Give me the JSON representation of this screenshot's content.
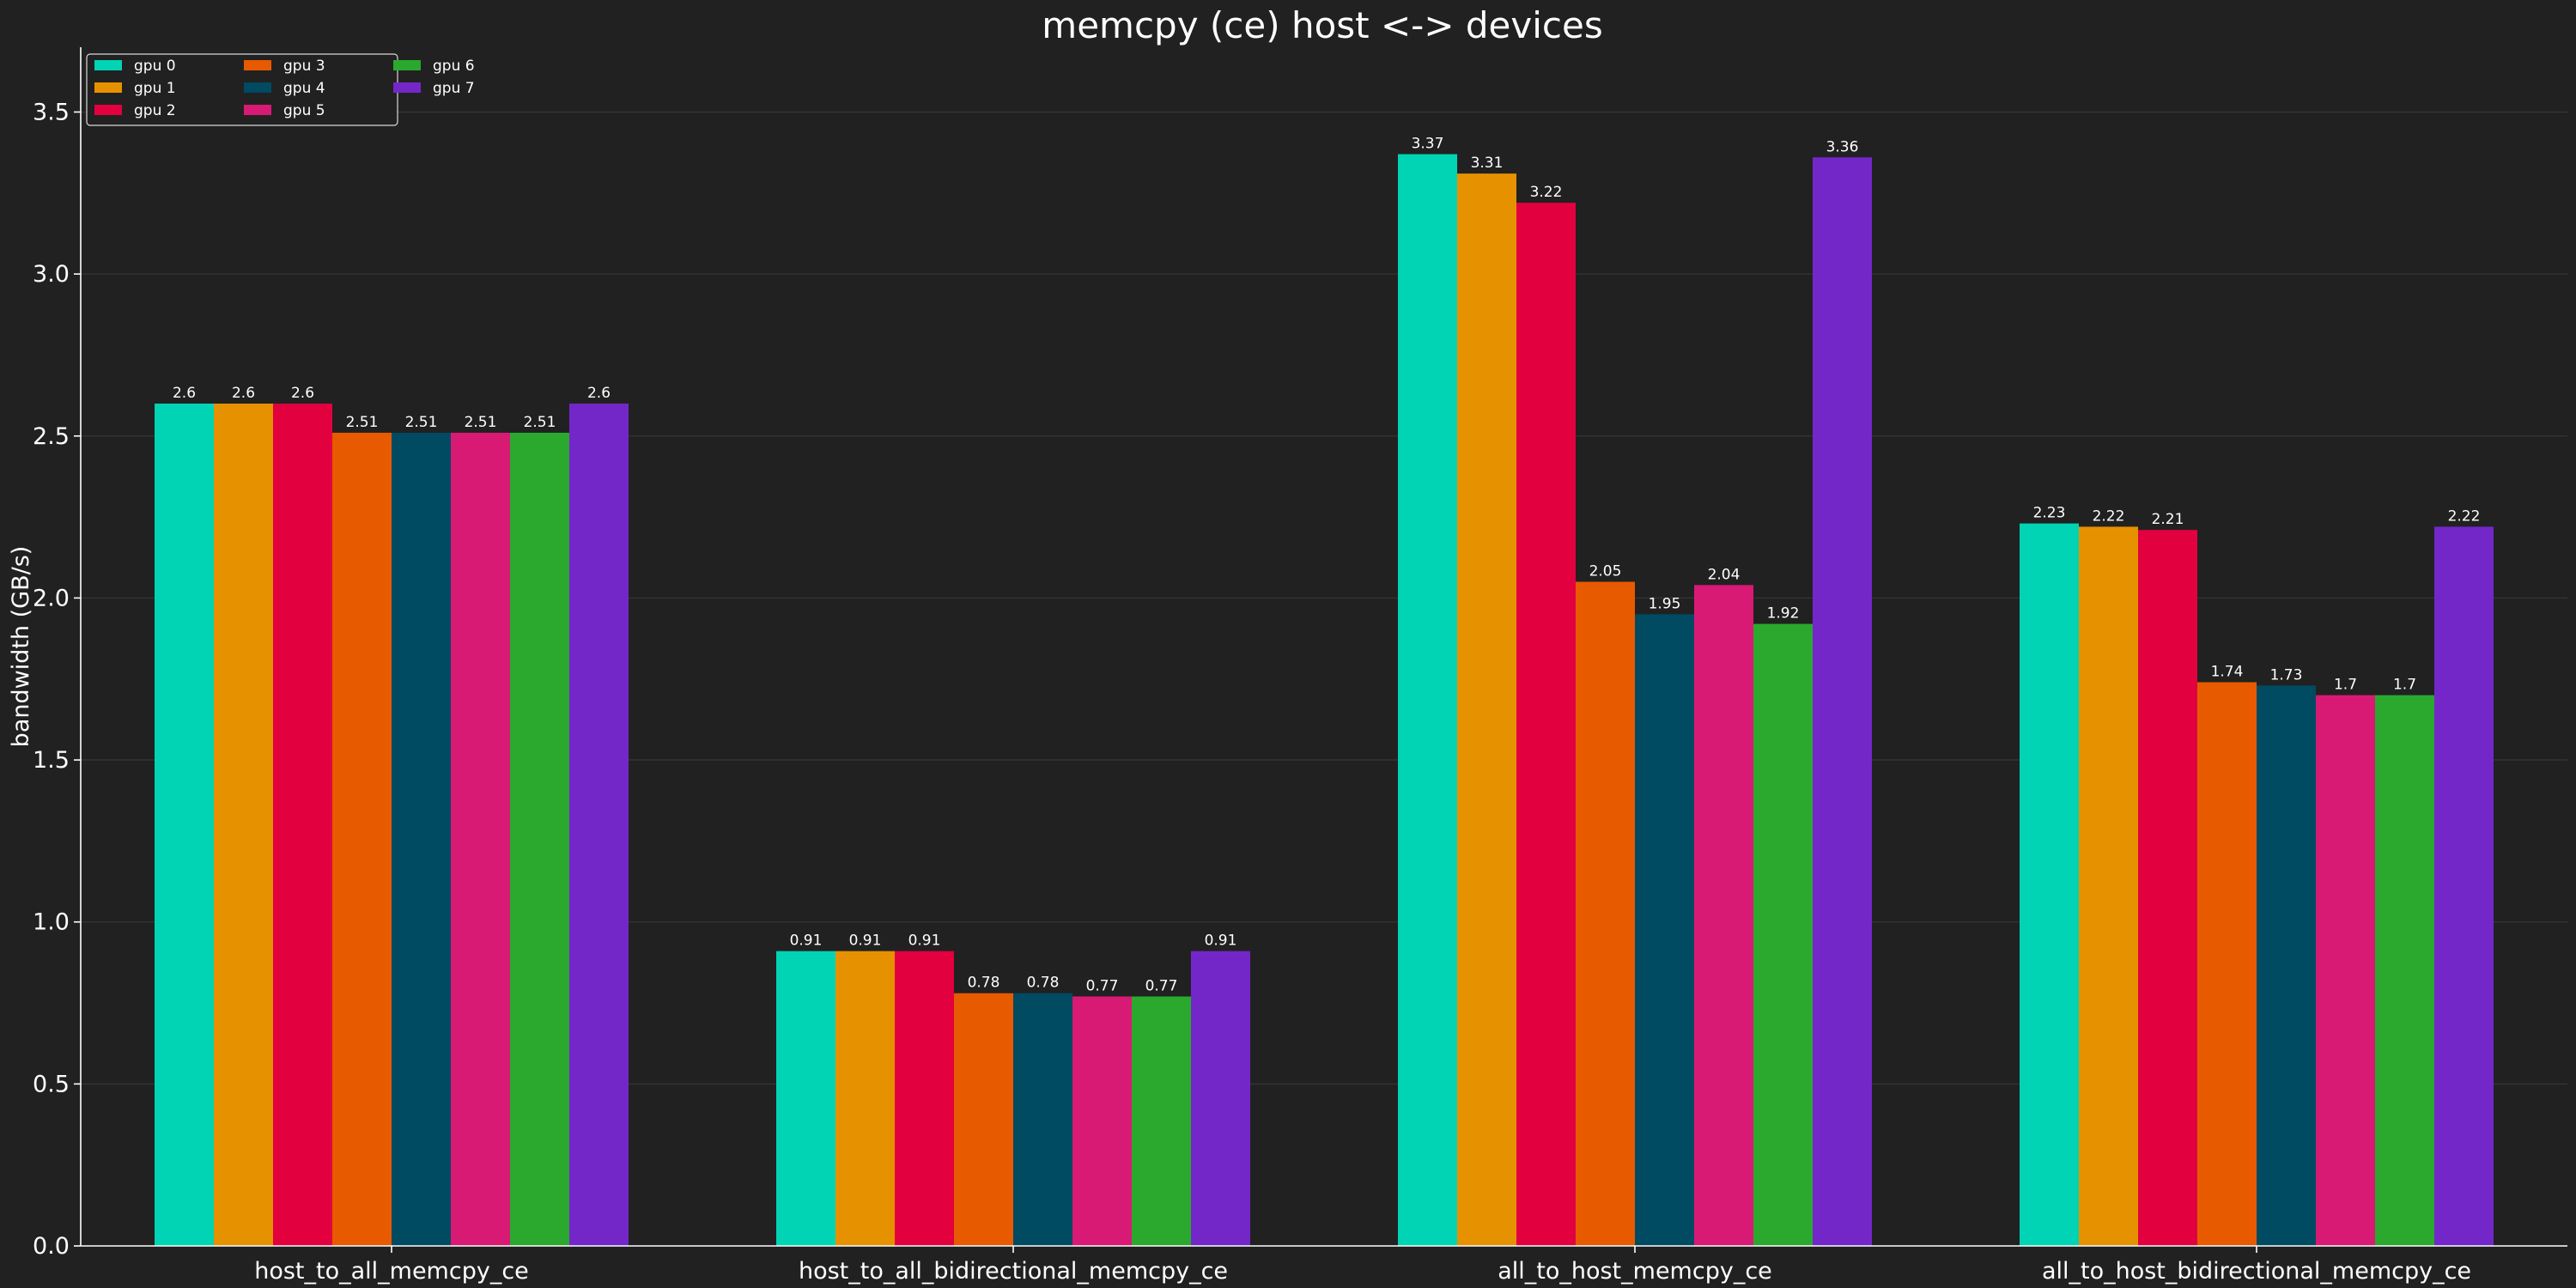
{
  "chart_data": {
    "type": "bar",
    "title": "memcpy (ce) host <-> devices",
    "xlabel": "",
    "ylabel": "bandwidth (GB/s)",
    "ylim": [
      0,
      3.7
    ],
    "yticks": [
      "0.0",
      "0.5",
      "1.0",
      "1.5",
      "2.0",
      "2.5",
      "3.0",
      "3.5"
    ],
    "grid": "horizontal",
    "legend_position": "top-left",
    "background_color": "#212121",
    "categories": [
      "host_to_all_memcpy_ce",
      "host_to_all_bidirectional_memcpy_ce",
      "all_to_host_memcpy_ce",
      "all_to_host_bidirectional_memcpy_ce"
    ],
    "series": [
      {
        "name": "gpu 0",
        "color": "#00d4b4",
        "values": [
          2.6,
          0.91,
          3.37,
          2.23
        ],
        "labels": [
          "2.6",
          "0.91",
          "3.37",
          "2.23"
        ]
      },
      {
        "name": "gpu 1",
        "color": "#e69200",
        "values": [
          2.6,
          0.91,
          3.31,
          2.22
        ],
        "labels": [
          "2.6",
          "0.91",
          "3.31",
          "2.22"
        ]
      },
      {
        "name": "gpu 2",
        "color": "#e2003f",
        "values": [
          2.6,
          0.91,
          3.22,
          2.21
        ],
        "labels": [
          "2.6",
          "0.91",
          "3.22",
          "2.21"
        ]
      },
      {
        "name": "gpu 3",
        "color": "#e85a00",
        "values": [
          2.51,
          0.78,
          2.05,
          1.74
        ],
        "labels": [
          "2.51",
          "0.78",
          "2.05",
          "1.74"
        ]
      },
      {
        "name": "gpu 4",
        "color": "#004a62",
        "values": [
          2.51,
          0.78,
          1.95,
          1.73
        ],
        "labels": [
          "2.51",
          "0.78",
          "1.95",
          "1.73"
        ]
      },
      {
        "name": "gpu 5",
        "color": "#d81a74",
        "values": [
          2.51,
          0.77,
          2.04,
          1.7
        ],
        "labels": [
          "2.51",
          "0.77",
          "2.04",
          "1.7"
        ]
      },
      {
        "name": "gpu 6",
        "color": "#2aa92e",
        "values": [
          2.51,
          0.77,
          1.92,
          1.7
        ],
        "labels": [
          "2.51",
          "0.77",
          "1.92",
          "1.7"
        ]
      },
      {
        "name": "gpu 7",
        "color": "#7427c9",
        "values": [
          2.6,
          0.91,
          3.36,
          2.22
        ],
        "labels": [
          "2.6",
          "0.91",
          "3.36",
          "2.22"
        ]
      }
    ]
  }
}
